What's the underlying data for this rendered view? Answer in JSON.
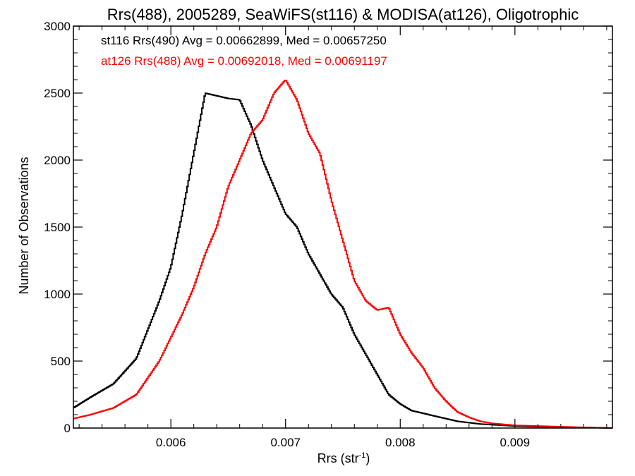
{
  "chart_data": {
    "type": "histogram",
    "title": "Rrs(488), 2005289, SeaWiFS(st116) & MODISA(at126), Oligotrophic",
    "xlabel": "Rrs (str",
    "xlabel_sup": "-1",
    "xlabel_close": ")",
    "ylabel": "Number of Observations",
    "xlim": [
      0.00515,
      0.00985
    ],
    "ylim": [
      0,
      3000
    ],
    "xticks": [
      {
        "value": 0.006,
        "label": "0.006"
      },
      {
        "value": 0.007,
        "label": "0.007"
      },
      {
        "value": 0.008,
        "label": "0.008"
      },
      {
        "value": 0.009,
        "label": "0.009"
      }
    ],
    "yticks": [
      {
        "value": 0,
        "label": "0"
      },
      {
        "value": 500,
        "label": "500"
      },
      {
        "value": 1000,
        "label": "1000"
      },
      {
        "value": 1500,
        "label": "1500"
      },
      {
        "value": 2000,
        "label": "2000"
      },
      {
        "value": 2500,
        "label": "2500"
      },
      {
        "value": 3000,
        "label": "3000"
      }
    ],
    "grid": false,
    "legend_position": "top-left",
    "series": [
      {
        "name": "st116 Rrs(490) Avg = 0.00662899, Med = 0.00657250",
        "color": "#000000",
        "points": [
          [
            0.00515,
            150
          ],
          [
            0.0053,
            230
          ],
          [
            0.0055,
            330
          ],
          [
            0.0057,
            520
          ],
          [
            0.0059,
            950
          ],
          [
            0.006,
            1200
          ],
          [
            0.0061,
            1600
          ],
          [
            0.0062,
            2050
          ],
          [
            0.0063,
            2500
          ],
          [
            0.0064,
            2480
          ],
          [
            0.0065,
            2460
          ],
          [
            0.0066,
            2450
          ],
          [
            0.0067,
            2260
          ],
          [
            0.0068,
            2000
          ],
          [
            0.0069,
            1800
          ],
          [
            0.007,
            1600
          ],
          [
            0.0071,
            1500
          ],
          [
            0.0072,
            1300
          ],
          [
            0.0073,
            1150
          ],
          [
            0.0074,
            1000
          ],
          [
            0.0075,
            900
          ],
          [
            0.0076,
            700
          ],
          [
            0.0077,
            550
          ],
          [
            0.0078,
            400
          ],
          [
            0.0079,
            250
          ],
          [
            0.008,
            180
          ],
          [
            0.0081,
            130
          ],
          [
            0.0082,
            110
          ],
          [
            0.0083,
            90
          ],
          [
            0.0084,
            70
          ],
          [
            0.0085,
            50
          ],
          [
            0.0086,
            40
          ],
          [
            0.0087,
            30
          ],
          [
            0.0088,
            25
          ],
          [
            0.009,
            15
          ],
          [
            0.0092,
            10
          ],
          [
            0.0094,
            5
          ],
          [
            0.0096,
            5
          ],
          [
            0.00985,
            0
          ]
        ]
      },
      {
        "name": "at126 Rrs(488) Avg = 0.00692018, Med = 0.00691197",
        "color": "#ff0000",
        "points": [
          [
            0.00515,
            70
          ],
          [
            0.0053,
            100
          ],
          [
            0.0055,
            150
          ],
          [
            0.0057,
            250
          ],
          [
            0.0059,
            500
          ],
          [
            0.0061,
            850
          ],
          [
            0.0062,
            1050
          ],
          [
            0.0063,
            1300
          ],
          [
            0.0064,
            1500
          ],
          [
            0.0065,
            1800
          ],
          [
            0.0066,
            2000
          ],
          [
            0.0067,
            2200
          ],
          [
            0.0068,
            2300
          ],
          [
            0.0069,
            2500
          ],
          [
            0.007,
            2600
          ],
          [
            0.0071,
            2450
          ],
          [
            0.0072,
            2200
          ],
          [
            0.0073,
            2050
          ],
          [
            0.0074,
            1700
          ],
          [
            0.0075,
            1400
          ],
          [
            0.0076,
            1100
          ],
          [
            0.0077,
            950
          ],
          [
            0.0078,
            880
          ],
          [
            0.0079,
            900
          ],
          [
            0.008,
            700
          ],
          [
            0.0081,
            560
          ],
          [
            0.0082,
            450
          ],
          [
            0.0083,
            300
          ],
          [
            0.0084,
            200
          ],
          [
            0.0085,
            120
          ],
          [
            0.0086,
            80
          ],
          [
            0.0087,
            50
          ],
          [
            0.0088,
            35
          ],
          [
            0.009,
            20
          ],
          [
            0.0092,
            15
          ],
          [
            0.0094,
            10
          ],
          [
            0.0096,
            5
          ],
          [
            0.00985,
            0
          ]
        ]
      }
    ]
  }
}
